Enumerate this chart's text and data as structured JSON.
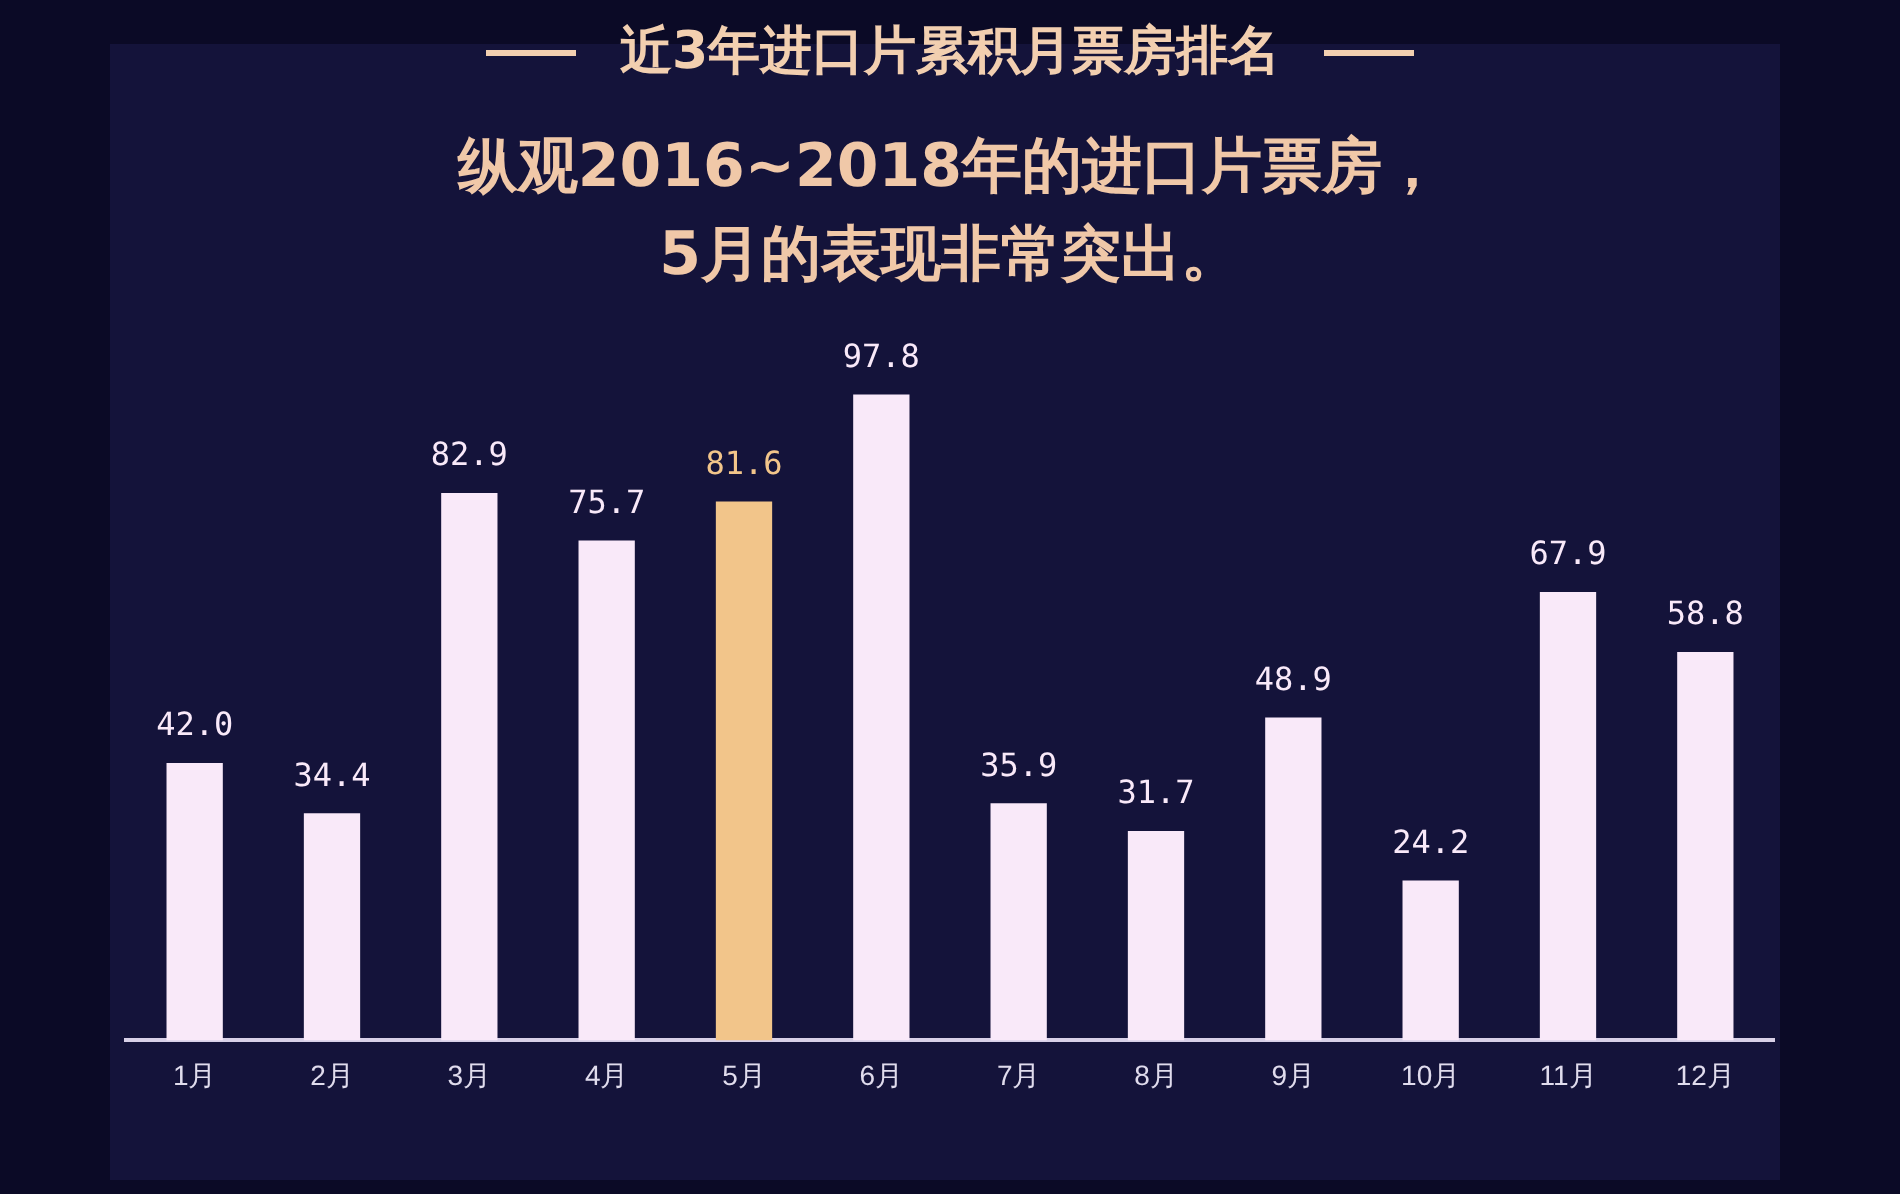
{
  "chart_data": {
    "type": "bar",
    "title": "近3年进口片累积月票房排名",
    "subtitle": "纵观2016~2018年的进口片票房，\n5月的表现非常突出。",
    "categories": [
      "1月",
      "2月",
      "3月",
      "4月",
      "5月",
      "6月",
      "7月",
      "8月",
      "9月",
      "10月",
      "11月",
      "12月"
    ],
    "values": [
      42.0,
      34.4,
      82.9,
      75.7,
      81.6,
      97.8,
      35.9,
      31.7,
      48.9,
      24.2,
      67.9,
      58.8
    ],
    "colors": [
      "#f9e9f9",
      "#f9e9f9",
      "#f9e9f9",
      "#f9e9f9",
      "#f2c58a",
      "#f9e9f9",
      "#f9e9f9",
      "#f9e9f9",
      "#f9e9f9",
      "#f9e9f9",
      "#f9e9f9",
      "#f9e9f9"
    ],
    "value_labels": [
      "42.0",
      "34.4",
      "82.9",
      "75.7",
      "81.6",
      "97.8",
      "35.9",
      "31.7",
      "48.9",
      "24.2",
      "67.9",
      "58.8"
    ],
    "grid": false,
    "legend": false
  }
}
